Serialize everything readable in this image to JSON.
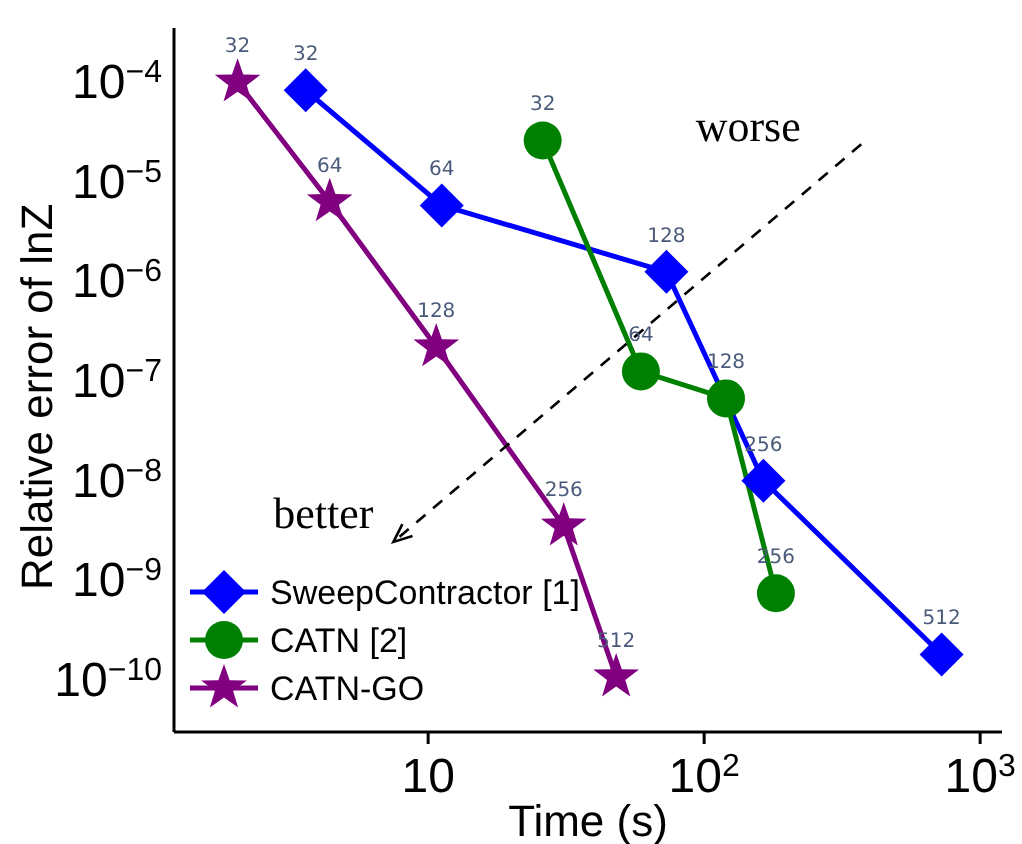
{
  "chart_data": {
    "type": "line",
    "xlabel": "Time (s)",
    "ylabel": "Relative error of lnZ",
    "log": "xy",
    "legend": "bottom left",
    "xlim": [
      1.2,
      1200
    ],
    "xticks": [
      10,
      {
        "value": 100,
        "label": "10$^{2}$"
      },
      {
        "value": 1000,
        "label": "10$^{3}$"
      }
    ],
    "ylim": [
      3e-11,
      0.00035
    ],
    "yticks": [
      {
        "value": 1e-10,
        "label": "10$^{−10}$"
      },
      {
        "value": 1e-09,
        "label": "10$^{−9}$"
      },
      {
        "value": 1e-08,
        "label": "10$^{−8}$"
      },
      {
        "value": 1e-07,
        "label": "10$^{−7}$"
      },
      {
        "value": 1e-06,
        "label": "10$^{−6}$"
      },
      {
        "value": 1e-05,
        "label": "10$^{−5}$"
      },
      {
        "value": 0.0001,
        "label": "10$^{−4}$"
      }
    ],
    "annotations": [
      "worse",
      "better",
      {
        "text": "32",
        "x": 3.6,
        "y": 8.3e-05
      },
      {
        "text": "64",
        "x": 11.2,
        "y": 5.8e-06
      },
      {
        "text": "128",
        "x": 73,
        "y": 1.25e-06
      },
      {
        "text": "256",
        "x": 164,
        "y": 1e-08
      },
      {
        "text": "512",
        "x": 725,
        "y": 1.8e-10
      },
      {
        "text": "32",
        "x": 26,
        "y": 2.6e-05
      },
      {
        "text": "64",
        "x": 59,
        "y": 1.25e-07
      },
      {
        "text": "128",
        "x": 120,
        "y": 6.7e-08
      },
      {
        "text": "256",
        "x": 182,
        "y": 7.4e-10
      },
      {
        "text": "32",
        "x": 2.04,
        "y": 0.0001
      },
      {
        "text": "64",
        "x": 4.4,
        "y": 6.3e-06
      },
      {
        "text": "128",
        "x": 10.7,
        "y": 2.2e-07
      },
      {
        "text": "256",
        "x": 31,
        "y": 3.5e-09
      },
      {
        "text": "512",
        "x": 48,
        "y": 1.07e-10
      }
    ],
    "series": [
      {
        "name": "SweepContractor [1]",
        "color": "#0000ff",
        "marker": "diamond",
        "x": [
          3.6,
          11.2,
          73,
          164,
          725
        ],
        "values": [
          8.3e-05,
          5.8e-06,
          1.25e-06,
          1e-08,
          1.8e-10
        ]
      },
      {
        "name": "CATN [2]",
        "color": "#008000",
        "marker": "circle",
        "x": [
          26,
          59,
          120,
          182
        ],
        "values": [
          2.6e-05,
          1.25e-07,
          6.7e-08,
          7.4e-10
        ]
      },
      {
        "name": "CATN-GO",
        "color": "#800080",
        "marker": "star",
        "x": [
          2.04,
          4.4,
          10.7,
          31,
          48
        ],
        "values": [
          0.0001,
          6.3e-06,
          2.2e-07,
          3.5e-09,
          1.07e-10
        ]
      }
    ]
  }
}
